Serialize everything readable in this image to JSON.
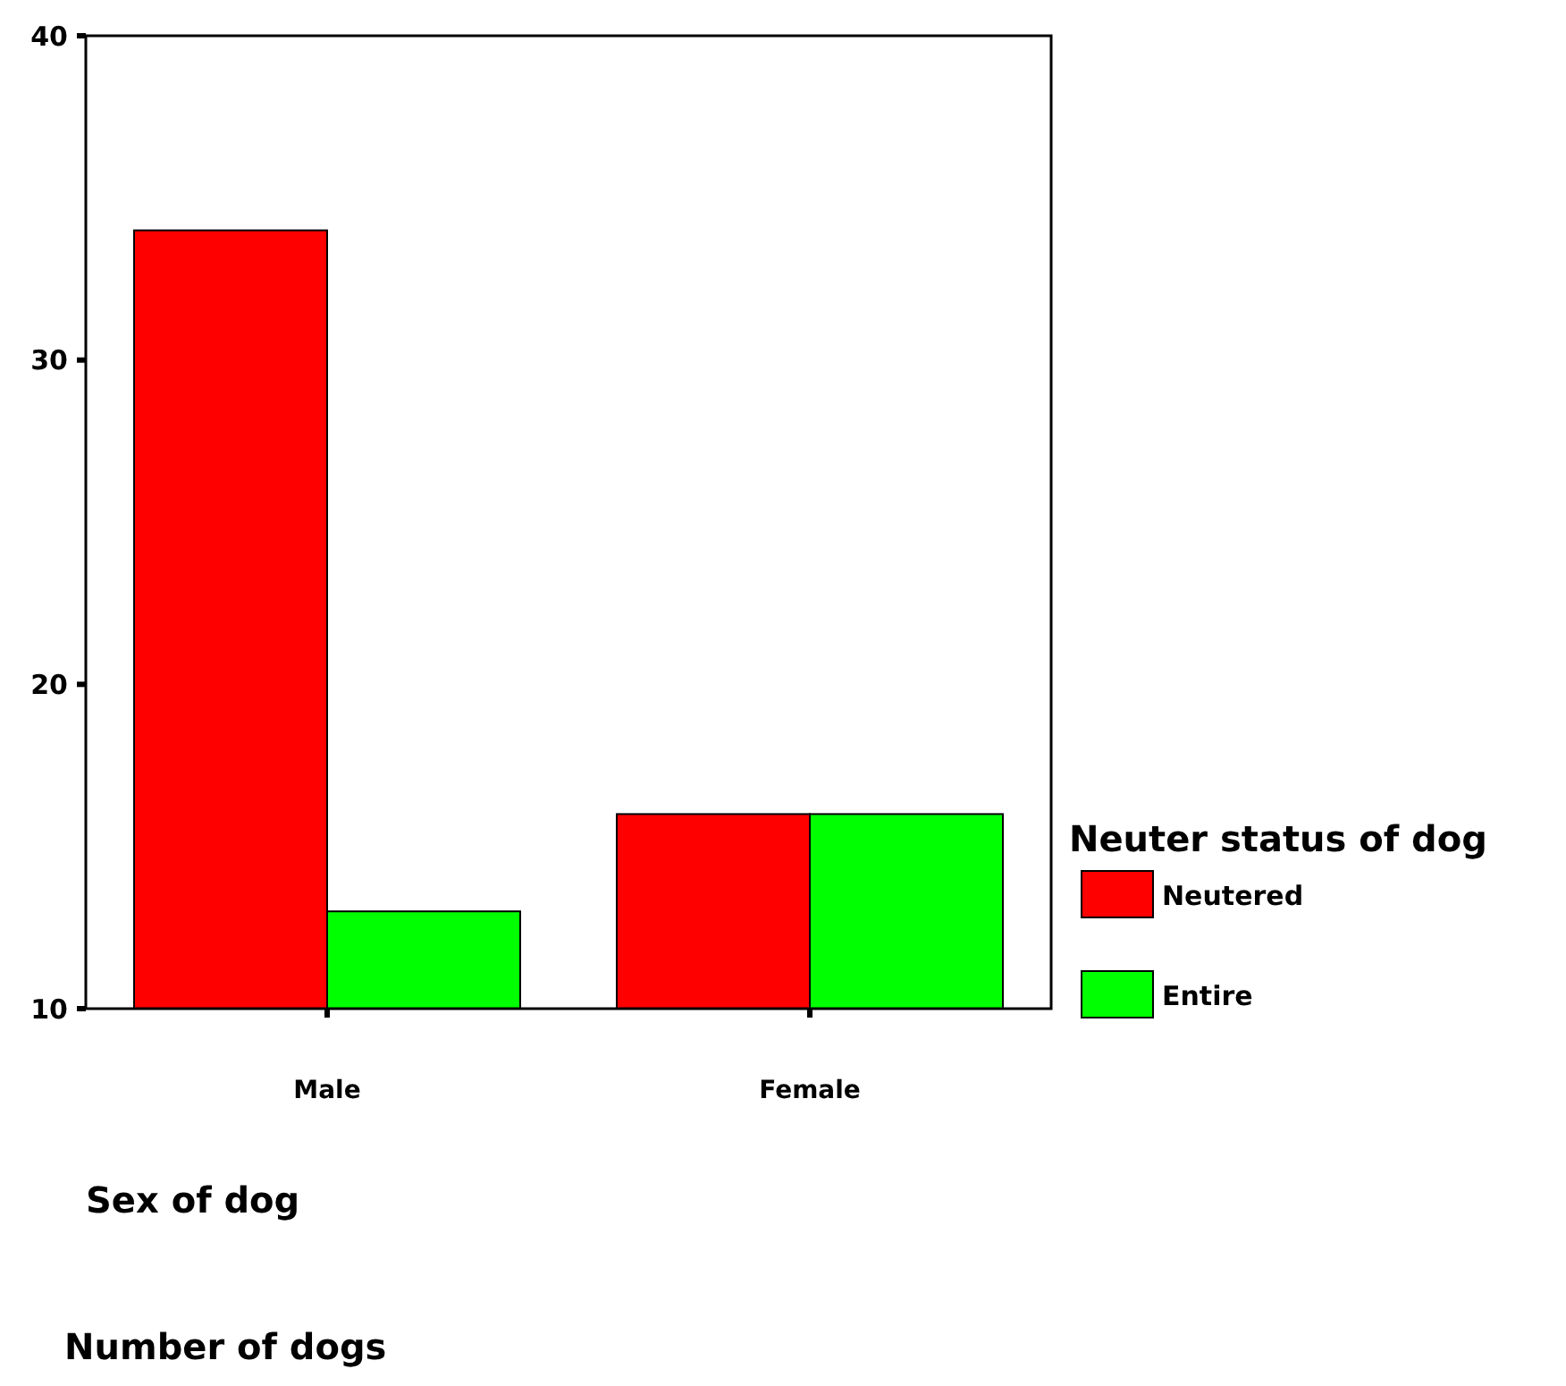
{
  "chart_data": {
    "type": "bar",
    "xlabel": "Sex of dog",
    "annotations": [
      "Number of dogs"
    ],
    "legend_title": "Neuter status of dog",
    "categories": [
      "Male",
      "Female"
    ],
    "series": [
      {
        "name": "Neutered",
        "color": "#ff0000",
        "values": [
          34,
          16
        ]
      },
      {
        "name": "Entire",
        "color": "#00ff00",
        "values": [
          13,
          16
        ]
      }
    ],
    "ylim": [
      10,
      40
    ],
    "yticks": [
      10,
      20,
      30,
      40
    ],
    "grid": false,
    "legend": "right"
  }
}
